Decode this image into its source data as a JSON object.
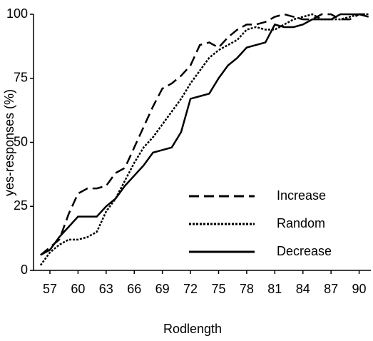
{
  "chart_data": {
    "type": "line",
    "x_label": "Rodlength",
    "y_label": "yes-responses (%)",
    "x": [
      56,
      57,
      58,
      59,
      60,
      61,
      62,
      63,
      64,
      65,
      66,
      67,
      68,
      69,
      70,
      71,
      72,
      73,
      74,
      75,
      76,
      77,
      78,
      79,
      80,
      81,
      82,
      83,
      84,
      85,
      86,
      87,
      88,
      89,
      90,
      91
    ],
    "series": [
      {
        "name": "Increase",
        "color": "#000000",
        "style": "dashed",
        "values": [
          6,
          9,
          12,
          22,
          30,
          32,
          32,
          33,
          38,
          40,
          48,
          56,
          64,
          71,
          73,
          76,
          80,
          88,
          89,
          87,
          91,
          94,
          96,
          96,
          97,
          99,
          100,
          99,
          98,
          98,
          100,
          100,
          98,
          98,
          100,
          100
        ]
      },
      {
        "name": "Random",
        "color": "#000000",
        "style": "dotted",
        "values": [
          2,
          7,
          10,
          12,
          12,
          13,
          15,
          23,
          28,
          35,
          42,
          48,
          52,
          57,
          62,
          67,
          73,
          78,
          83,
          86,
          88,
          90,
          94,
          95,
          94,
          94,
          96,
          98,
          99,
          100,
          98,
          98,
          98,
          99,
          100,
          100
        ]
      },
      {
        "name": "Decrease",
        "color": "#000000",
        "style": "solid",
        "values": [
          6,
          8,
          13,
          17,
          21,
          21,
          21,
          25,
          28,
          33,
          37,
          41,
          46,
          47,
          48,
          54,
          67,
          68,
          69,
          75,
          80,
          83,
          87,
          88,
          89,
          96,
          95,
          95,
          96,
          98,
          98,
          98,
          100,
          100,
          100,
          99
        ]
      }
    ],
    "xlim": [
      55.25,
      91.25
    ],
    "xticks": [
      57,
      60,
      63,
      66,
      69,
      72,
      75,
      78,
      81,
      84,
      87,
      90
    ],
    "ylim": [
      0,
      100
    ],
    "yticks": [
      0,
      25,
      50,
      75,
      100
    ],
    "grid": false,
    "legend": "lower right"
  }
}
